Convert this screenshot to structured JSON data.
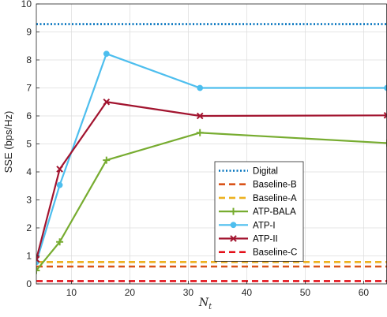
{
  "chart_data": {
    "type": "line",
    "xlabel": "N",
    "xlabel_sub": "t",
    "ylabel": "SSE (bps/Hz)",
    "xlim": [
      4,
      64
    ],
    "ylim": [
      0,
      10
    ],
    "xticks": [
      10,
      20,
      30,
      40,
      50,
      60
    ],
    "yticks": [
      0,
      1,
      2,
      3,
      4,
      5,
      6,
      7,
      8,
      9,
      10
    ],
    "grid": true,
    "legend_position": "center-right",
    "series": [
      {
        "name": "Digital",
        "color": "#0072BD",
        "style": "dotted",
        "marker": "none",
        "x": [
          4,
          64
        ],
        "y": [
          9.28,
          9.28
        ]
      },
      {
        "name": "Baseline-B",
        "color": "#D95319",
        "style": "dashed",
        "marker": "none",
        "x": [
          4,
          64
        ],
        "y": [
          0.62,
          0.62
        ]
      },
      {
        "name": "Baseline-A",
        "color": "#EDB120",
        "style": "dashed",
        "marker": "none",
        "x": [
          4,
          64
        ],
        "y": [
          0.78,
          0.78
        ]
      },
      {
        "name": "ATP-BALA",
        "color": "#77AC30",
        "style": "solid",
        "marker": "plus",
        "x": [
          4,
          8,
          16,
          32,
          64
        ],
        "y": [
          0.48,
          1.5,
          4.42,
          5.4,
          5.03
        ]
      },
      {
        "name": "ATP-I",
        "color": "#4DBEEE",
        "style": "solid",
        "marker": "circle",
        "x": [
          4,
          8,
          16,
          32,
          64
        ],
        "y": [
          0.78,
          3.53,
          8.22,
          7.0,
          7.0
        ]
      },
      {
        "name": "ATP-II",
        "color": "#A2142F",
        "style": "solid",
        "marker": "x",
        "x": [
          4,
          8,
          16,
          32,
          64
        ],
        "y": [
          0.88,
          4.1,
          6.5,
          6.0,
          6.02
        ]
      },
      {
        "name": "Baseline-C",
        "color": "#E3101A",
        "style": "dashed",
        "marker": "none",
        "x": [
          4,
          64
        ],
        "y": [
          0.1,
          0.1
        ]
      }
    ]
  }
}
